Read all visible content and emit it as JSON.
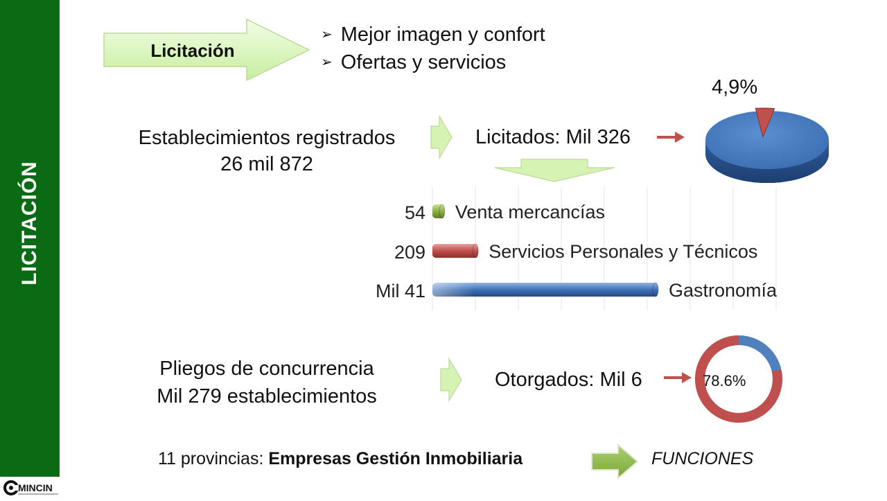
{
  "sidebar": {
    "title": "LICITACIÓN",
    "color": "#0a6b14"
  },
  "logo": {
    "text": "MINCIN"
  },
  "header": {
    "arrow_label": "Licitación",
    "bullets": [
      "Mejor imagen y confort",
      "Ofertas y servicios"
    ],
    "bullet_icon": "arrow-bullet-icon"
  },
  "registered": {
    "line1": "Establecimientos registrados",
    "line2": "26 mil 872",
    "licitados": "Licitados: Mil 326",
    "pie_percent_label": "4,9%",
    "pie_share": 0.049
  },
  "chart_data": {
    "type": "bar",
    "orientation": "horizontal",
    "categories": [
      "Venta mercancías",
      "Servicios Personales y Técnicos",
      "Gastronomía"
    ],
    "value_labels": [
      "54",
      "209",
      "Mil 41"
    ],
    "values": [
      54,
      209,
      1041
    ],
    "colors": [
      "#8db04a",
      "#c0504d",
      "#3f72b6"
    ],
    "grid": true
  },
  "pliegos": {
    "line1": "Pliegos de concurrencia",
    "line2": "Mil 279 establecimientos",
    "otorgados": "Otorgados: Mil 6",
    "donut_percent_label": "78.6%",
    "donut_share": 0.786,
    "colors": {
      "main": "#c0504d",
      "rest": "#4f81bd"
    }
  },
  "footer": {
    "provinces_prefix": "11 provincias: ",
    "provinces_bold": "Empresas Gestión Inmobiliaria",
    "functions": "FUNCIONES"
  }
}
